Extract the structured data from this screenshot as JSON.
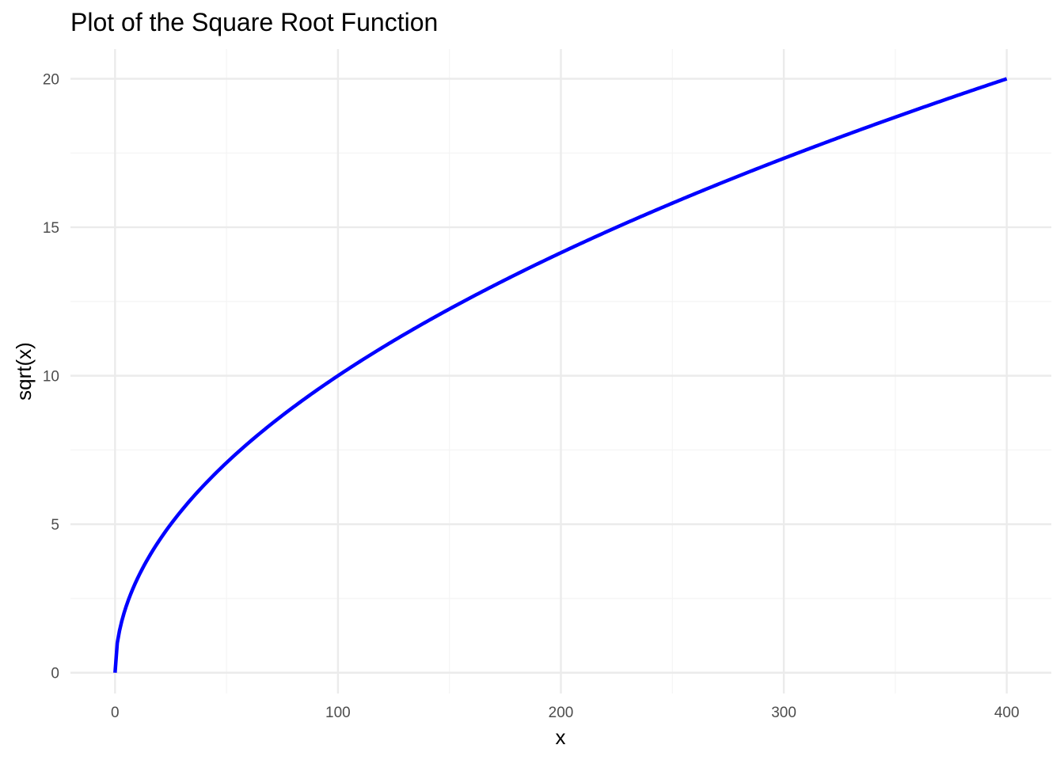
{
  "chart_data": {
    "type": "line",
    "title": "Plot of the Square Root Function",
    "xlabel": "x",
    "ylabel": "sqrt(x)",
    "xlim": [
      -20,
      420
    ],
    "ylim": [
      -0.7,
      21
    ],
    "x_ticks": [
      0,
      100,
      200,
      300,
      400
    ],
    "x_tick_labels": [
      "0",
      "100",
      "200",
      "300",
      "400"
    ],
    "y_ticks": [
      0,
      5,
      10,
      15,
      20
    ],
    "y_tick_labels": [
      "0",
      "5",
      "10",
      "15",
      "20"
    ],
    "x_minor_ticks": [
      50,
      150,
      250,
      350
    ],
    "y_minor_ticks": [
      2.5,
      7.5,
      12.5,
      17.5
    ],
    "grid": true,
    "legend": "none",
    "series": [
      {
        "function": "sqrt(x)",
        "x_range": [
          0,
          400
        ],
        "x": [
          0,
          1,
          2,
          4,
          6,
          9,
          12,
          16,
          20,
          25,
          30,
          36,
          42,
          49,
          56,
          64,
          72,
          81,
          90,
          100,
          121,
          144,
          169,
          196,
          225,
          256,
          289,
          324,
          361,
          400
        ],
        "y": [
          0,
          1,
          1.414,
          2,
          2.449,
          3,
          3.464,
          4,
          4.472,
          5,
          5.477,
          6,
          6.481,
          7,
          7.483,
          8,
          8.485,
          9,
          9.487,
          10,
          11,
          12,
          13,
          14,
          15,
          16,
          17,
          18,
          19,
          20
        ],
        "color": "#0000ff"
      }
    ],
    "colors": {
      "line": "#0000ff",
      "grid_major": "#ebebeb",
      "grid_minor": "#f4f4f4",
      "tick_text": "#4d4d4d",
      "axis_title": "#000000"
    }
  }
}
